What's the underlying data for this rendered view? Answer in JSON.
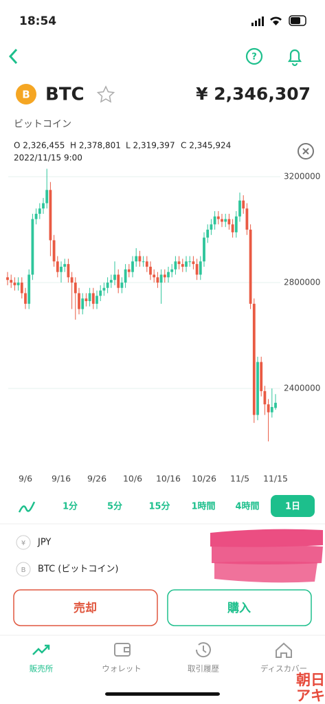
{
  "status_bar": {
    "time": "18:54"
  },
  "header": {
    "symbol": "BTC",
    "price": "¥ 2,346,307",
    "name": "ビットコイン"
  },
  "chart": {
    "type": "candlestick",
    "ohlc_labels": [
      "O 2,326,455",
      "H 2,378,801",
      "L 2,319,397",
      "C 2,345,924"
    ],
    "timestamp": "2022/11/15 9:00",
    "categories": [
      null,
      null,
      null,
      null,
      null,
      "9/6",
      null,
      null,
      null,
      null,
      null,
      null,
      null,
      null,
      null,
      "9/16",
      null,
      null,
      null,
      null,
      null,
      null,
      null,
      null,
      null,
      "9/26",
      null,
      null,
      null,
      null,
      null,
      null,
      null,
      null,
      null,
      "10/6",
      null,
      null,
      null,
      null,
      null,
      null,
      null,
      null,
      null,
      "10/16",
      null,
      null,
      null,
      null,
      null,
      null,
      null,
      null,
      null,
      "10/26",
      null,
      null,
      null,
      null,
      null,
      null,
      null,
      null,
      null,
      "11/5",
      null,
      null,
      null,
      null,
      null,
      null,
      null,
      null,
      null,
      "11/15"
    ],
    "open": [
      2820000,
      2810000,
      2800000,
      2790000,
      2800000,
      2760000,
      2720000,
      2830000,
      3040000,
      3060000,
      3080000,
      3100000,
      3150000,
      2960000,
      2880000,
      2840000,
      2860000,
      2870000,
      2820000,
      2800000,
      2760000,
      2700000,
      2740000,
      2730000,
      2760000,
      2720000,
      2750000,
      2770000,
      2780000,
      2800000,
      2810000,
      2830000,
      2780000,
      2800000,
      2850000,
      2840000,
      2880000,
      2900000,
      2880000,
      2880000,
      2860000,
      2830000,
      2820000,
      2800000,
      2830000,
      2820000,
      2840000,
      2850000,
      2880000,
      2870000,
      2860000,
      2880000,
      2880000,
      2870000,
      2830000,
      2880000,
      2970000,
      3000000,
      3020000,
      3050000,
      3040000,
      3030000,
      3040000,
      3020000,
      2990000,
      3050000,
      3110000,
      3080000,
      3000000,
      2720000,
      2300000,
      2500000,
      2390000,
      2340000,
      2310000,
      2326455
    ],
    "high": [
      2840000,
      2830000,
      2820000,
      2820000,
      2820000,
      2780000,
      2850000,
      3060000,
      3080000,
      3100000,
      3120000,
      3230000,
      3180000,
      2980000,
      2900000,
      2880000,
      2890000,
      2890000,
      2840000,
      2820000,
      2780000,
      2760000,
      2760000,
      2780000,
      2780000,
      2770000,
      2790000,
      2800000,
      2820000,
      2830000,
      2880000,
      2850000,
      2820000,
      2870000,
      2870000,
      2900000,
      2930000,
      2920000,
      2900000,
      2900000,
      2880000,
      2850000,
      2840000,
      2850000,
      2850000,
      2860000,
      2870000,
      2900000,
      2900000,
      2890000,
      2900000,
      2900000,
      2900000,
      2890000,
      2900000,
      2990000,
      3020000,
      3040000,
      3070000,
      3070000,
      3060000,
      3060000,
      3060000,
      3040000,
      3070000,
      3140000,
      3130000,
      3100000,
      3020000,
      2740000,
      2520000,
      2520000,
      2410000,
      2360000,
      2400000,
      2378801
    ],
    "low": [
      2790000,
      2780000,
      2770000,
      2770000,
      2740000,
      2700000,
      2700000,
      2810000,
      3020000,
      3040000,
      3060000,
      3080000,
      2900000,
      2860000,
      2820000,
      2800000,
      2840000,
      2800000,
      2700000,
      2660000,
      2680000,
      2680000,
      2710000,
      2710000,
      2700000,
      2700000,
      2730000,
      2750000,
      2760000,
      2780000,
      2790000,
      2760000,
      2760000,
      2780000,
      2820000,
      2820000,
      2860000,
      2860000,
      2860000,
      2840000,
      2810000,
      2800000,
      2780000,
      2720000,
      2800000,
      2800000,
      2820000,
      2830000,
      2850000,
      2840000,
      2840000,
      2860000,
      2850000,
      2810000,
      2810000,
      2860000,
      2950000,
      2980000,
      3000000,
      3020000,
      3010000,
      3010000,
      3000000,
      2970000,
      2970000,
      3030000,
      3060000,
      2980000,
      2700000,
      2270000,
      2280000,
      2370000,
      2300000,
      2200000,
      2290000,
      2319397
    ],
    "close": [
      2810000,
      2800000,
      2790000,
      2800000,
      2760000,
      2720000,
      2830000,
      3040000,
      3060000,
      3080000,
      3100000,
      3150000,
      2960000,
      2880000,
      2840000,
      2860000,
      2870000,
      2820000,
      2800000,
      2760000,
      2700000,
      2740000,
      2730000,
      2760000,
      2720000,
      2750000,
      2770000,
      2780000,
      2800000,
      2810000,
      2830000,
      2780000,
      2800000,
      2850000,
      2840000,
      2880000,
      2900000,
      2880000,
      2880000,
      2860000,
      2830000,
      2820000,
      2800000,
      2830000,
      2820000,
      2840000,
      2850000,
      2880000,
      2870000,
      2860000,
      2880000,
      2880000,
      2870000,
      2830000,
      2880000,
      2970000,
      3000000,
      3020000,
      3050000,
      3040000,
      3030000,
      3040000,
      3020000,
      2990000,
      3050000,
      3110000,
      3080000,
      3000000,
      2720000,
      2300000,
      2500000,
      2390000,
      2340000,
      2310000,
      2330000,
      2345924
    ],
    "up_color": "#2ec59b",
    "down_color": "#e95a43",
    "ylim": [
      2150000,
      3230000
    ],
    "yticks": [
      2400000,
      2800000,
      3200000
    ],
    "grid": true
  },
  "timeframes": {
    "items": [
      "1分",
      "5分",
      "15分",
      "1時間",
      "4時間",
      "1日"
    ],
    "selected": 5
  },
  "balances": [
    {
      "label": "JPY"
    },
    {
      "label": "BTC (ビットコイン)"
    }
  ],
  "buttons": {
    "sell": "売却",
    "buy": "購入"
  },
  "tab_bar": [
    "販売所",
    "ウォレット",
    "取引履歴",
    "ディスカバー"
  ],
  "watermark": [
    "朝日",
    "アキ"
  ]
}
